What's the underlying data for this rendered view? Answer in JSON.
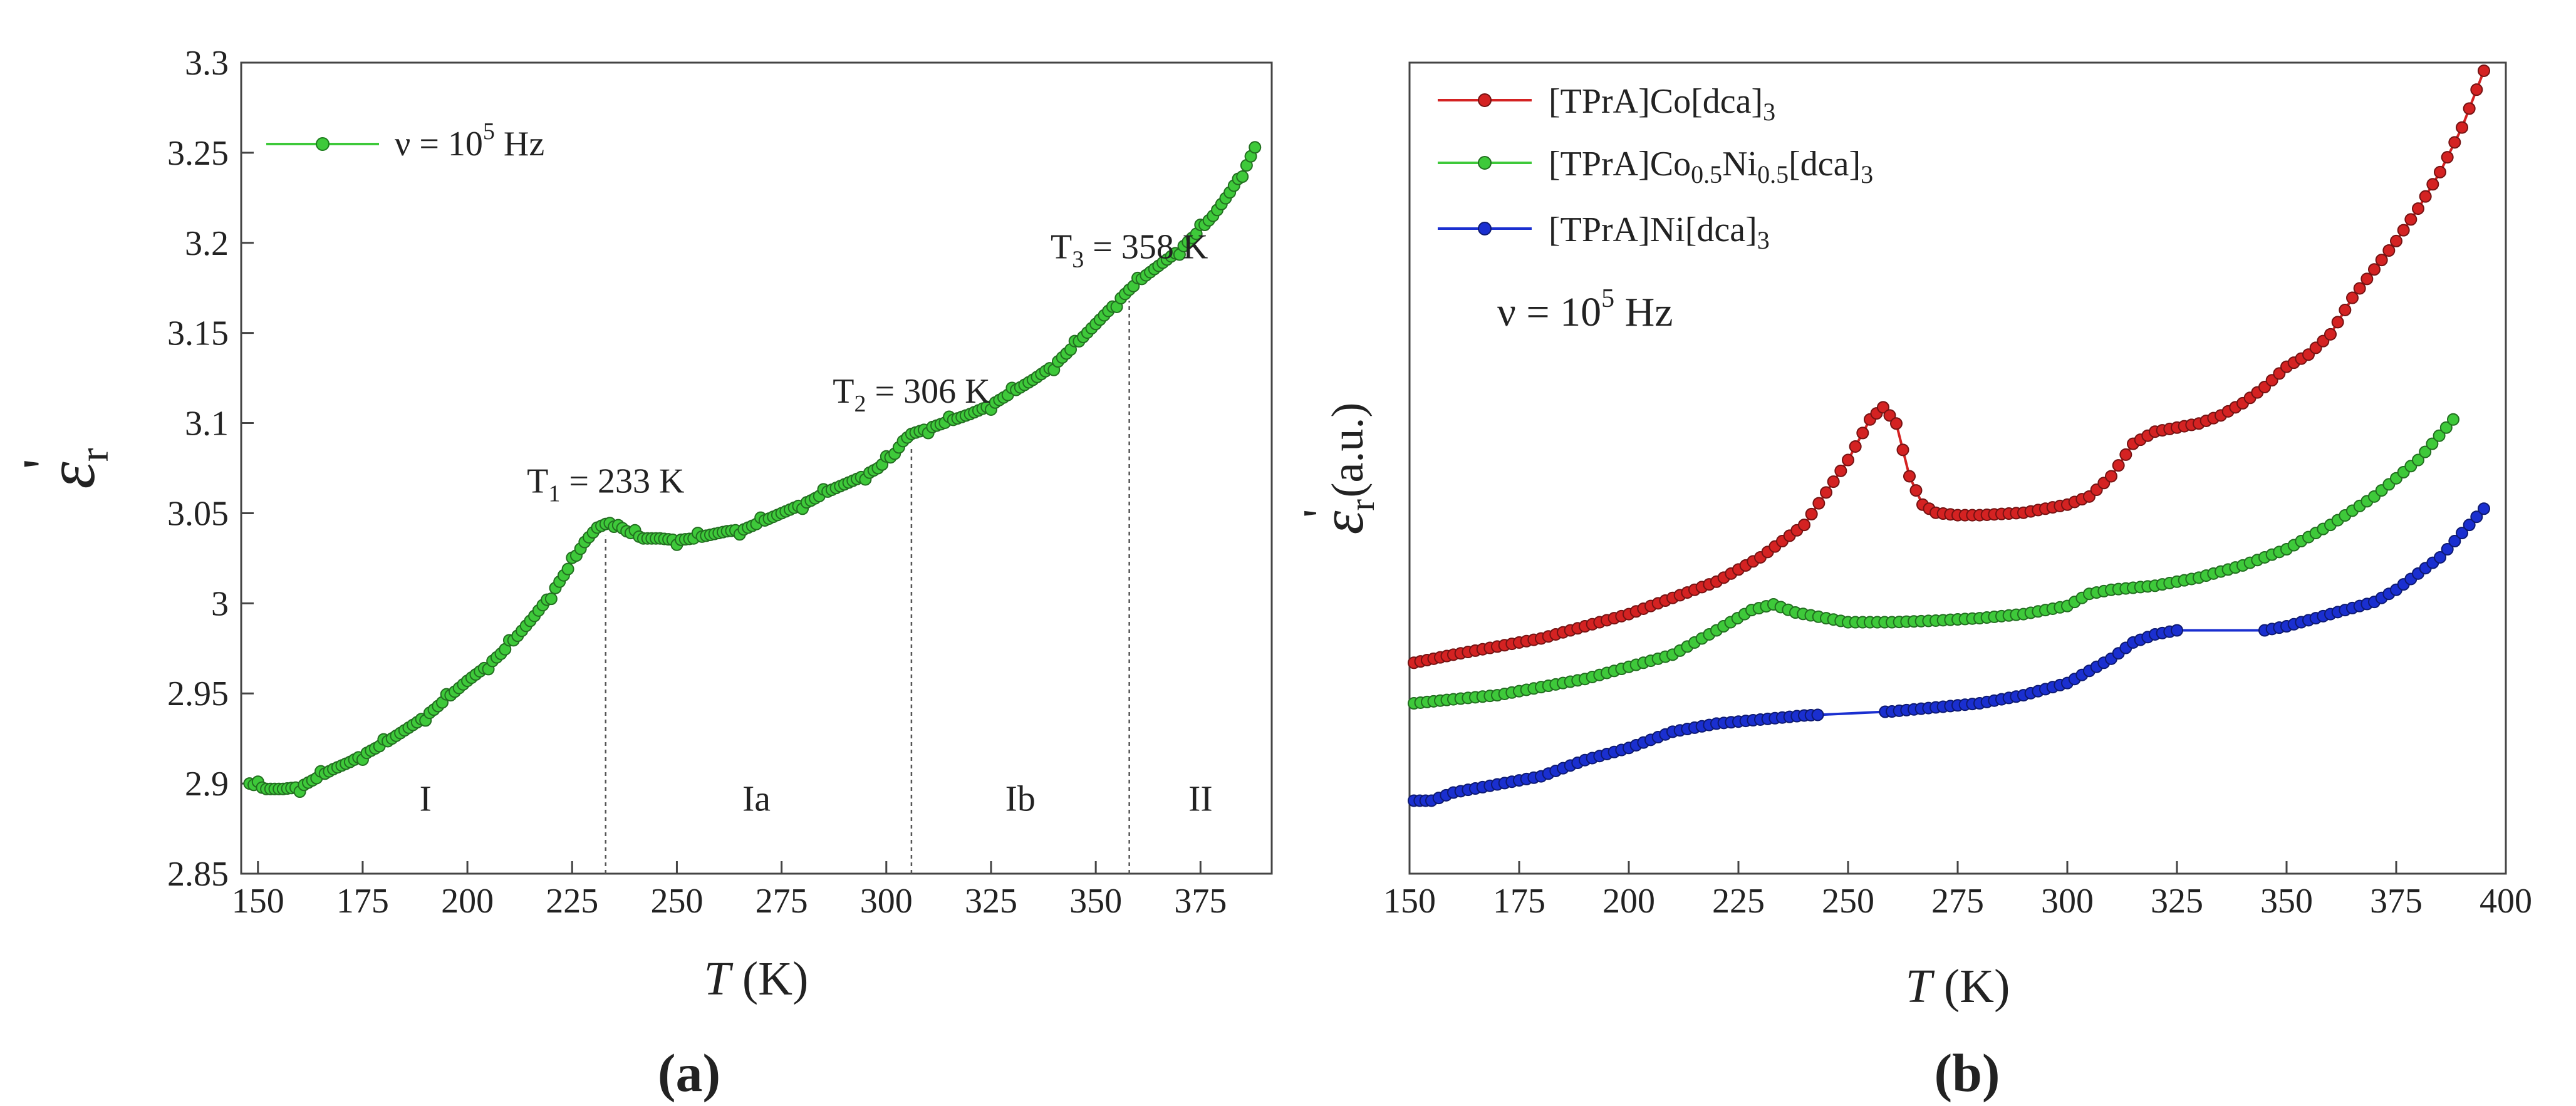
{
  "chart_data": [
    {
      "type": "scatter",
      "panel_label": "(a)",
      "xlabel": {
        "italic": "T",
        "rest": " (K)"
      },
      "ylabel": {
        "main": "ε",
        "sub": "r",
        "prime": "'"
      },
      "xlim": [
        146,
        392
      ],
      "ylim": [
        2.85,
        3.3
      ],
      "xticks": [
        150,
        175,
        200,
        225,
        250,
        275,
        300,
        325,
        350,
        375
      ],
      "xtick_labels": [
        "150",
        "175",
        "200",
        "225",
        "250",
        "275",
        "300",
        "325",
        "350",
        "375"
      ],
      "yticks": [
        2.85,
        2.9,
        2.95,
        3.0,
        3.05,
        3.1,
        3.15,
        3.2,
        3.25,
        3.3
      ],
      "ytick_labels": [
        "2.85",
        "2.9",
        "2.95",
        "3",
        "3.05",
        "3.1",
        "3.15",
        "3.2",
        "3.25",
        "3.3"
      ],
      "grid": false,
      "legend_position": "top-left",
      "series": [
        {
          "name": "ν = 10⁵ Hz",
          "color": "#3ec93a",
          "x": [
            148,
            152,
            156,
            160,
            164,
            168,
            172,
            176,
            180,
            184,
            188,
            192,
            196,
            200,
            204,
            208,
            212,
            216,
            220,
            224,
            228,
            231,
            233,
            235,
            238,
            242,
            246,
            250,
            254,
            258,
            262,
            266,
            270,
            274,
            278,
            282,
            286,
            290,
            294,
            298,
            302,
            304,
            306,
            310,
            315,
            320,
            325,
            330,
            335,
            340,
            345,
            350,
            355,
            358,
            362,
            366,
            370,
            374,
            378,
            382,
            386,
            388
          ],
          "y": [
            2.9,
            2.897,
            2.897,
            2.898,
            2.903,
            2.908,
            2.912,
            2.917,
            2.922,
            2.928,
            2.934,
            2.941,
            2.949,
            2.957,
            2.964,
            2.972,
            2.982,
            2.993,
            3.005,
            3.019,
            3.034,
            3.042,
            3.044,
            3.045,
            3.04,
            3.036,
            3.036,
            3.035,
            3.036,
            3.038,
            3.04,
            3.041,
            3.045,
            3.049,
            3.053,
            3.057,
            3.062,
            3.066,
            3.07,
            3.075,
            3.083,
            3.09,
            3.094,
            3.097,
            3.101,
            3.105,
            3.11,
            3.117,
            3.124,
            3.132,
            3.143,
            3.155,
            3.167,
            3.174,
            3.182,
            3.189,
            3.196,
            3.205,
            3.215,
            3.228,
            3.243,
            3.253
          ]
        }
      ],
      "transitions": [
        {
          "label_main": "T",
          "label_sub": "1",
          "label_rest": " = 233 K",
          "x": 233
        },
        {
          "label_main": "T",
          "label_sub": "2",
          "label_rest": " = 306 K",
          "x": 306
        },
        {
          "label_main": "T",
          "label_sub": "3",
          "label_rest": " = 358 K",
          "x": 358
        }
      ],
      "regions": [
        {
          "label": "I",
          "x": 190
        },
        {
          "label": "Ia",
          "x": 269
        },
        {
          "label": "Ib",
          "x": 332
        },
        {
          "label": "II",
          "x": 375
        }
      ]
    },
    {
      "type": "line",
      "panel_label": "(b)",
      "xlabel": {
        "italic": "T",
        "rest": " (K)"
      },
      "ylabel": {
        "main": "ε",
        "sub": "r",
        "prime": "'",
        "rest": " (a.u.)"
      },
      "xlim": [
        150,
        400
      ],
      "ylim": [
        0,
        1
      ],
      "xticks": [
        150,
        175,
        200,
        225,
        250,
        275,
        300,
        325,
        350,
        375,
        400
      ],
      "xtick_labels": [
        "150",
        "175",
        "200",
        "225",
        "250",
        "275",
        "300",
        "325",
        "350",
        "375",
        "400"
      ],
      "yticks": [],
      "grid": false,
      "legend_position": "top-left",
      "annotation": {
        "main": "ν = 10",
        "sup": "5",
        "rest": " Hz"
      },
      "series": [
        {
          "name": "[TPrA]Co[dca]₃",
          "color": "#d42222",
          "x": [
            151,
            160,
            170,
            180,
            190,
            200,
            210,
            220,
            230,
            240,
            245,
            250,
            255,
            258,
            261,
            264,
            267,
            270,
            275,
            280,
            290,
            300,
            305,
            310,
            315,
            320,
            325,
            330,
            335,
            340,
            345,
            350,
            355,
            360,
            365,
            370,
            375,
            380,
            385,
            390,
            395
          ],
          "y": [
            0.26,
            0.27,
            0.28,
            0.29,
            0.305,
            0.32,
            0.34,
            0.36,
            0.39,
            0.43,
            0.47,
            0.51,
            0.56,
            0.575,
            0.555,
            0.49,
            0.455,
            0.445,
            0.442,
            0.442,
            0.445,
            0.455,
            0.465,
            0.49,
            0.53,
            0.545,
            0.55,
            0.555,
            0.565,
            0.58,
            0.6,
            0.625,
            0.64,
            0.665,
            0.71,
            0.745,
            0.78,
            0.82,
            0.865,
            0.92,
            0.99
          ]
        },
        {
          "name": "[TPrA]Co₀.₅Ni₀.₅[dca]₃",
          "color": "#3ec93a",
          "x": [
            151,
            160,
            170,
            180,
            190,
            200,
            210,
            220,
            228,
            233,
            238,
            245,
            250,
            260,
            270,
            280,
            290,
            300,
            305,
            310,
            320,
            330,
            340,
            350,
            360,
            370,
            380,
            388
          ],
          "y": [
            0.21,
            0.215,
            0.22,
            0.23,
            0.24,
            0.255,
            0.27,
            0.3,
            0.325,
            0.332,
            0.322,
            0.315,
            0.31,
            0.31,
            0.312,
            0.315,
            0.32,
            0.33,
            0.345,
            0.35,
            0.355,
            0.365,
            0.38,
            0.4,
            0.43,
            0.465,
            0.51,
            0.56
          ]
        },
        {
          "name": "[TPrA]Ni[dca]₃",
          "color": "#1a2fd0",
          "x": [
            151,
            155,
            160,
            170,
            180,
            190,
            200,
            210,
            220,
            230,
            240,
            260,
            270,
            280,
            290,
            300,
            305,
            310,
            315,
            320,
            325,
            345,
            350,
            360,
            370,
            375,
            380,
            385,
            390,
            395
          ],
          "y": [
            0.09,
            0.09,
            0.1,
            0.11,
            0.12,
            0.14,
            0.155,
            0.175,
            0.185,
            0.19,
            0.195,
            0.2,
            0.205,
            0.21,
            0.22,
            0.235,
            0.25,
            0.265,
            0.285,
            0.295,
            0.3,
            0.3,
            0.305,
            0.32,
            0.335,
            0.35,
            0.37,
            0.39,
            0.42,
            0.45
          ]
        }
      ]
    }
  ]
}
